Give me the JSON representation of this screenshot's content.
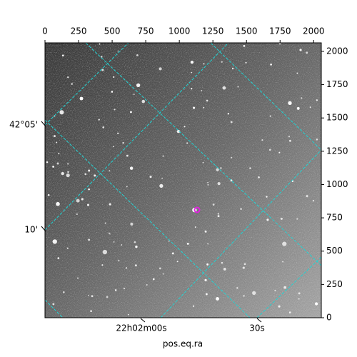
{
  "chart_data": {
    "type": "image",
    "xlabel": "pos.eq.ra",
    "xlim": [
      0,
      2057
    ],
    "ylim": [
      0,
      2064
    ],
    "xticks": [
      0,
      250,
      500,
      750,
      1000,
      1250,
      1500,
      1750,
      2000
    ],
    "yticks": [
      0,
      250,
      500,
      750,
      1000,
      1250,
      1500,
      1750,
      2000
    ],
    "ra_labels": [
      "22h02m00s",
      "30s"
    ],
    "dec_labels": [
      "42°05'",
      "10'"
    ]
  }
}
